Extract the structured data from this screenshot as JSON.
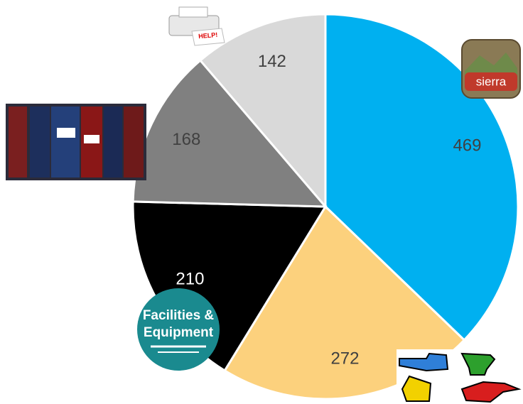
{
  "chart_data": {
    "type": "pie",
    "categories": [
      null,
      null,
      null,
      null,
      null
    ],
    "values": [
      469,
      272,
      210,
      168,
      142
    ],
    "colors": [
      "#00b0f0",
      "#fcd17d",
      "#000000",
      "#808080",
      "#d9d9d9"
    ],
    "start_angle": 0,
    "direction": "clockwise"
  },
  "images": {
    "printer_sign": "HELP!",
    "logo_sierra": "sierra",
    "logo_facilities_line1": "Facilities &",
    "logo_facilities_line2": "Equipment"
  }
}
